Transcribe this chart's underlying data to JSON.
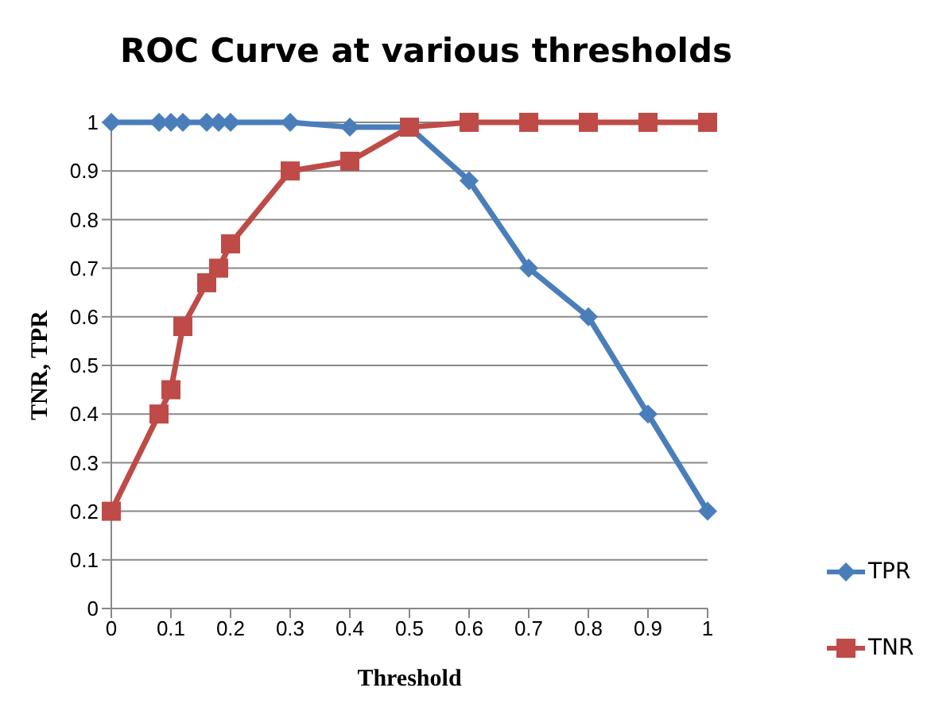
{
  "chart_data": {
    "type": "line",
    "title": "ROC Curve at various thresholds",
    "xlabel": "Threshold",
    "ylabel": "TNR, TPR",
    "x": [
      0,
      0.08,
      0.1,
      0.12,
      0.16,
      0.18,
      0.2,
      0.3,
      0.4,
      0.5,
      0.6,
      0.7,
      0.8,
      0.9,
      1
    ],
    "series": [
      {
        "name": "TPR",
        "color": "#4a7ebb",
        "marker": "diamond",
        "values": [
          1,
          1,
          1,
          1,
          1,
          1,
          1,
          1,
          0.99,
          0.99,
          0.88,
          0.7,
          0.6,
          0.4,
          0.2
        ]
      },
      {
        "name": "TNR",
        "color": "#be4b48",
        "marker": "square",
        "values": [
          0.2,
          0.4,
          0.45,
          0.58,
          0.67,
          0.7,
          0.75,
          0.9,
          0.92,
          0.99,
          1,
          1,
          1,
          1,
          1
        ]
      }
    ],
    "xlim": [
      0,
      1
    ],
    "xticks": [
      0,
      0.1,
      0.2,
      0.3,
      0.4,
      0.5,
      0.6,
      0.7,
      0.8,
      0.9,
      1
    ],
    "ylim": [
      0,
      1
    ],
    "yticks": [
      0,
      0.1,
      0.2,
      0.3,
      0.4,
      0.5,
      0.6,
      0.7,
      0.8,
      0.9,
      1
    ],
    "grid": "y",
    "legend": "bottom right",
    "line_style": "solid"
  }
}
